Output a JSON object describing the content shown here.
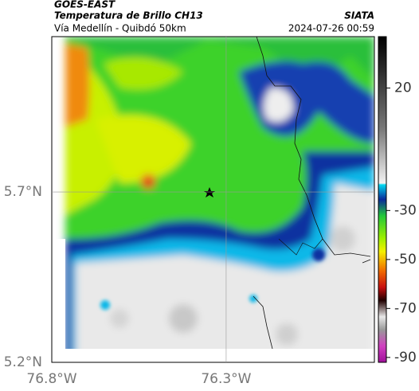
{
  "header": {
    "satellite": "GOES-EAST",
    "title": "Temperatura de Brillo CH13",
    "source": "SIATA",
    "region": "Vía Medellín - Quibdó 50km",
    "timestamp": "2024-07-26 00:59"
  },
  "map": {
    "lonlim": [
      -76.8,
      -75.875
    ],
    "latlim": [
      5.2,
      6.156
    ],
    "lonticks": [
      {
        "value": -76.8,
        "label": "76.8°W"
      },
      {
        "value": -76.3,
        "label": "76.3°W"
      }
    ],
    "latticks": [
      {
        "value": 5.7,
        "label": "5.7°N"
      },
      {
        "value": 5.2,
        "label": "5.2°N"
      }
    ]
  },
  "colorbar": {
    "lim": [
      -92,
      41
    ],
    "ticks": [
      20,
      -30,
      -50,
      -70,
      -90
    ]
  }
}
